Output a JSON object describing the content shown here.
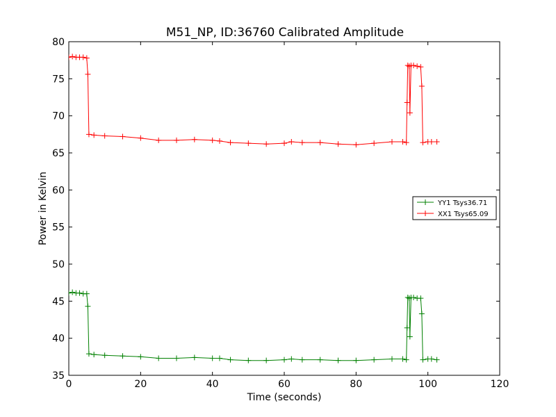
{
  "chart_data": {
    "type": "line",
    "title": "M51_NP, ID:36760 Calibrated Amplitude",
    "xlabel": "Time (seconds)",
    "ylabel": "Power in Kelvin",
    "xlim": [
      0,
      120
    ],
    "ylim": [
      35,
      80
    ],
    "xticks": [
      0,
      20,
      40,
      60,
      80,
      100,
      120
    ],
    "yticks": [
      35,
      40,
      45,
      50,
      55,
      60,
      65,
      70,
      75,
      80
    ],
    "grid": false,
    "legend_position": "right",
    "marker": "+",
    "series": [
      {
        "name": "YY1 Tsys36.71",
        "color": "#008000",
        "points": [
          [
            0,
            46.1
          ],
          [
            1,
            46.2
          ],
          [
            2,
            46.1
          ],
          [
            3,
            46.1
          ],
          [
            4,
            46.0
          ],
          [
            5,
            46.0
          ],
          [
            5.3,
            44.3
          ],
          [
            5.6,
            37.9
          ],
          [
            7,
            37.8
          ],
          [
            10,
            37.7
          ],
          [
            15,
            37.6
          ],
          [
            20,
            37.5
          ],
          [
            25,
            37.3
          ],
          [
            30,
            37.3
          ],
          [
            35,
            37.4
          ],
          [
            40,
            37.3
          ],
          [
            42,
            37.3
          ],
          [
            45,
            37.1
          ],
          [
            50,
            37.0
          ],
          [
            55,
            37.0
          ],
          [
            60,
            37.1
          ],
          [
            62,
            37.2
          ],
          [
            65,
            37.1
          ],
          [
            70,
            37.1
          ],
          [
            75,
            37.0
          ],
          [
            80,
            37.0
          ],
          [
            85,
            37.1
          ],
          [
            90,
            37.2
          ],
          [
            93,
            37.2
          ],
          [
            94,
            37.1
          ],
          [
            94.2,
            41.4
          ],
          [
            94.4,
            45.5
          ],
          [
            94.8,
            45.4
          ],
          [
            95.0,
            40.2
          ],
          [
            95.3,
            45.5
          ],
          [
            96,
            45.5
          ],
          [
            97,
            45.4
          ],
          [
            98,
            45.4
          ],
          [
            98.3,
            43.3
          ],
          [
            98.6,
            37.1
          ],
          [
            100,
            37.2
          ],
          [
            101,
            37.2
          ],
          [
            102.5,
            37.1
          ]
        ]
      },
      {
        "name": "XX1 Tsys65.09",
        "color": "#ff0000",
        "points": [
          [
            0,
            77.9
          ],
          [
            1,
            78.0
          ],
          [
            2,
            77.9
          ],
          [
            3,
            77.9
          ],
          [
            4,
            77.9
          ],
          [
            5,
            77.8
          ],
          [
            5.3,
            75.6
          ],
          [
            5.6,
            67.5
          ],
          [
            7,
            67.4
          ],
          [
            10,
            67.3
          ],
          [
            15,
            67.2
          ],
          [
            20,
            67.0
          ],
          [
            25,
            66.7
          ],
          [
            30,
            66.7
          ],
          [
            35,
            66.8
          ],
          [
            40,
            66.7
          ],
          [
            42,
            66.6
          ],
          [
            45,
            66.4
          ],
          [
            50,
            66.3
          ],
          [
            55,
            66.2
          ],
          [
            60,
            66.3
          ],
          [
            62,
            66.5
          ],
          [
            65,
            66.4
          ],
          [
            70,
            66.4
          ],
          [
            75,
            66.2
          ],
          [
            80,
            66.1
          ],
          [
            85,
            66.3
          ],
          [
            90,
            66.5
          ],
          [
            93,
            66.5
          ],
          [
            94,
            66.4
          ],
          [
            94.2,
            71.8
          ],
          [
            94.4,
            76.8
          ],
          [
            94.8,
            76.7
          ],
          [
            95.0,
            70.4
          ],
          [
            95.3,
            76.8
          ],
          [
            96,
            76.8
          ],
          [
            97,
            76.7
          ],
          [
            98,
            76.6
          ],
          [
            98.3,
            74.0
          ],
          [
            98.6,
            66.4
          ],
          [
            100,
            66.5
          ],
          [
            101,
            66.5
          ],
          [
            102.5,
            66.5
          ]
        ]
      }
    ]
  }
}
